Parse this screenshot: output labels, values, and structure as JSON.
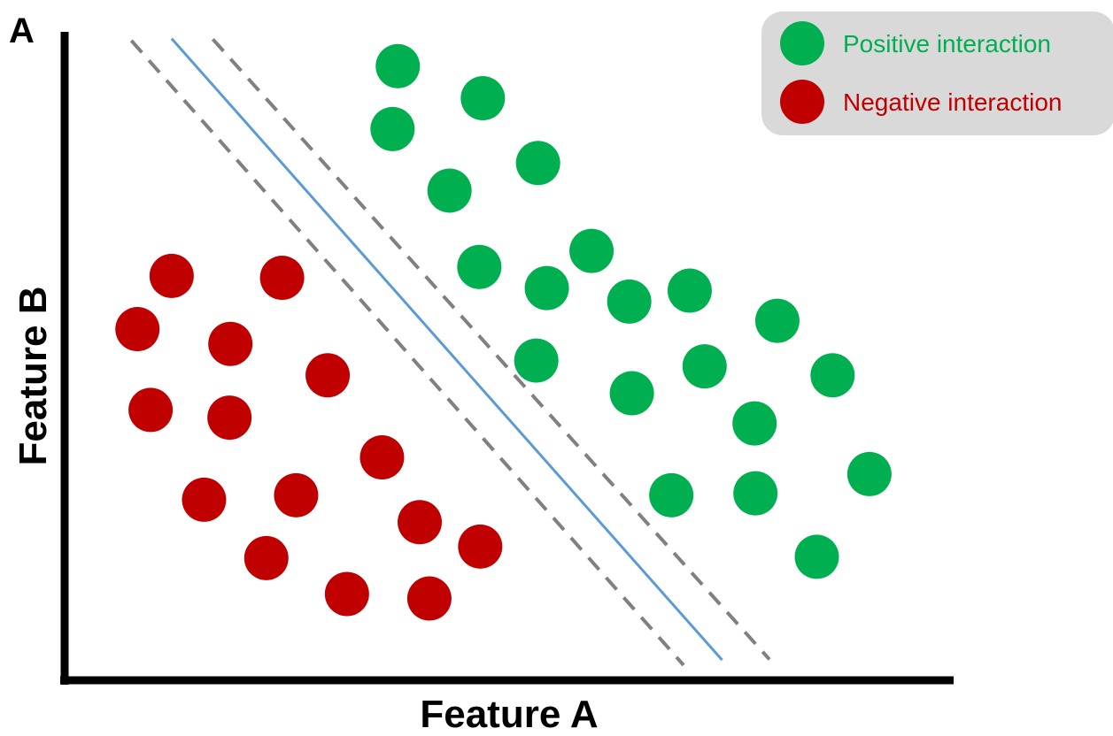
{
  "panel_label": "A",
  "axes": {
    "x_label": "Feature A",
    "y_label": "Feature B"
  },
  "legend": {
    "placement": "top-right",
    "entries": [
      {
        "label": "Positive interaction",
        "color": "#00b050",
        "key": "positive"
      },
      {
        "label": "Negative interaction",
        "color": "#c00000",
        "key": "negative"
      }
    ]
  },
  "colors": {
    "positive": "#00b050",
    "negative": "#c00000",
    "decision_boundary": "#5b9bd5",
    "margin": "#808080",
    "legend_background": "#d9d9d9"
  },
  "chart_data": {
    "type": "scatter",
    "xlim": [
      0,
      100
    ],
    "ylim": [
      0,
      100
    ],
    "series": [
      {
        "name": "Positive interaction",
        "color": "#00b050",
        "points": [
          [
            37.3,
            95.2
          ],
          [
            47.0,
            90.2
          ],
          [
            36.7,
            85.4
          ],
          [
            53.3,
            80.1
          ],
          [
            43.2,
            75.8
          ],
          [
            59.4,
            66.4
          ],
          [
            46.6,
            63.9
          ],
          [
            54.3,
            60.6
          ],
          [
            63.7,
            58.5
          ],
          [
            70.6,
            60.2
          ],
          [
            80.6,
            55.5
          ],
          [
            53.1,
            49.3
          ],
          [
            64.0,
            44.2
          ],
          [
            72.3,
            48.4
          ],
          [
            78.0,
            39.5
          ],
          [
            86.9,
            47.0
          ],
          [
            68.5,
            28.3
          ],
          [
            78.1,
            28.6
          ],
          [
            91.1,
            31.6
          ],
          [
            85.1,
            18.7
          ]
        ]
      },
      {
        "name": "Negative interaction",
        "color": "#c00000",
        "points": [
          [
            11.5,
            62.5
          ],
          [
            24.1,
            62.2
          ],
          [
            7.6,
            54.2
          ],
          [
            18.2,
            51.9
          ],
          [
            29.3,
            47.0
          ],
          [
            9.1,
            41.6
          ],
          [
            18.1,
            40.4
          ],
          [
            35.5,
            34.2
          ],
          [
            15.2,
            27.6
          ],
          [
            25.7,
            28.3
          ],
          [
            39.8,
            24.1
          ],
          [
            46.7,
            20.3
          ],
          [
            22.3,
            18.5
          ],
          [
            31.5,
            12.9
          ],
          [
            40.9,
            12.2
          ]
        ]
      }
    ],
    "lines": [
      {
        "role": "decision boundary",
        "style": "solid",
        "color": "#5b9bd5",
        "from": [
          11.5,
          99.5
        ],
        "to": [
          74.3,
          2.6
        ]
      },
      {
        "role": "margin",
        "style": "dashed",
        "color": "#808080",
        "from": [
          6.9,
          99.2
        ],
        "to": [
          69.9,
          1.8
        ]
      },
      {
        "role": "margin",
        "style": "dashed",
        "color": "#808080",
        "from": [
          16.2,
          99.4
        ],
        "to": [
          79.7,
          2.7
        ]
      }
    ]
  }
}
